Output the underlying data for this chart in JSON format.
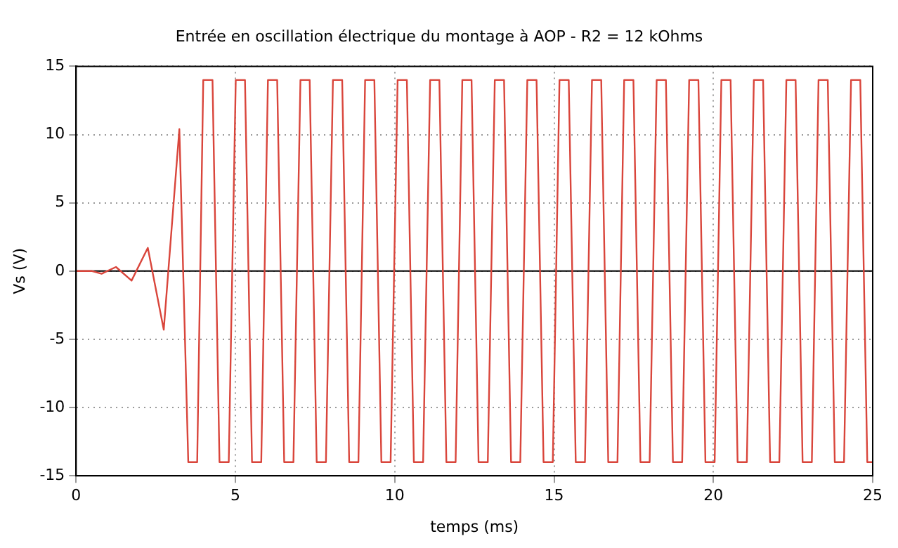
{
  "chart_data": {
    "type": "line",
    "title": "Entrée en oscillation électrique du montage à AOP - R2 = 12 kOhms",
    "xlabel": "temps (ms)",
    "ylabel": "Vs (V)",
    "xlim": [
      0,
      25
    ],
    "xticks": [
      0,
      5,
      10,
      15,
      20,
      25
    ],
    "ylim": [
      -15,
      15
    ],
    "yticks": [
      -15,
      -10,
      -5,
      0,
      5,
      10,
      15
    ],
    "grid": true,
    "legend": false,
    "marker": "none",
    "line_style": "solid",
    "ref_lines": [
      {
        "axis": "y",
        "value": 0,
        "color": "#000000"
      }
    ],
    "series": [
      {
        "color": "#d9453b",
        "x": [
          0,
          0.5,
          0.8,
          1.25,
          1.74,
          2.25,
          2.75,
          3.24,
          3.52,
          3.8,
          3.99,
          4.28,
          4.5,
          4.79,
          5.01,
          5.3,
          5.52,
          5.81,
          6.02,
          6.31,
          6.53,
          6.82,
          7.04,
          7.33,
          7.55,
          7.84,
          8.06,
          8.35,
          8.57,
          8.86,
          9.07,
          9.36,
          9.58,
          9.87,
          10.09,
          10.38,
          10.6,
          10.89,
          11.11,
          11.4,
          11.62,
          11.91,
          12.12,
          12.41,
          12.63,
          12.92,
          13.14,
          13.43,
          13.65,
          13.94,
          14.16,
          14.45,
          14.67,
          14.96,
          15.17,
          15.46,
          15.68,
          15.97,
          16.19,
          16.48,
          16.7,
          16.99,
          17.2,
          17.49,
          17.71,
          18,
          18.22,
          18.51,
          18.73,
          19.02,
          19.24,
          19.53,
          19.75,
          20.04,
          20.25,
          20.54,
          20.76,
          21.05,
          21.27,
          21.56,
          21.78,
          22.07,
          22.29,
          22.58,
          22.8,
          23.09,
          23.3,
          23.59,
          23.81,
          24.1,
          24.32,
          24.61,
          24.83,
          25
        ],
        "values": [
          0,
          0,
          -0.2,
          0.3,
          -0.7,
          1.7,
          -4.3,
          10.4,
          -14,
          -14,
          14,
          14,
          -14,
          -14,
          14,
          14,
          -14,
          -14,
          14,
          14,
          -14,
          -14,
          14,
          14,
          -14,
          -14,
          14,
          14,
          -14,
          -14,
          14,
          14,
          -14,
          -14,
          14,
          14,
          -14,
          -14,
          14,
          14,
          -14,
          -14,
          14,
          14,
          -14,
          -14,
          14,
          14,
          -14,
          -14,
          14,
          14,
          -14,
          -14,
          14,
          14,
          -14,
          -14,
          14,
          14,
          -14,
          -14,
          14,
          14,
          -14,
          -14,
          14,
          14,
          -14,
          -14,
          14,
          14,
          -14,
          -14,
          14,
          14,
          -14,
          -14,
          14,
          14,
          -14,
          -14,
          14,
          14,
          -14,
          -14,
          14,
          14,
          -14,
          -14,
          14,
          14,
          -14,
          -14
        ]
      }
    ]
  }
}
